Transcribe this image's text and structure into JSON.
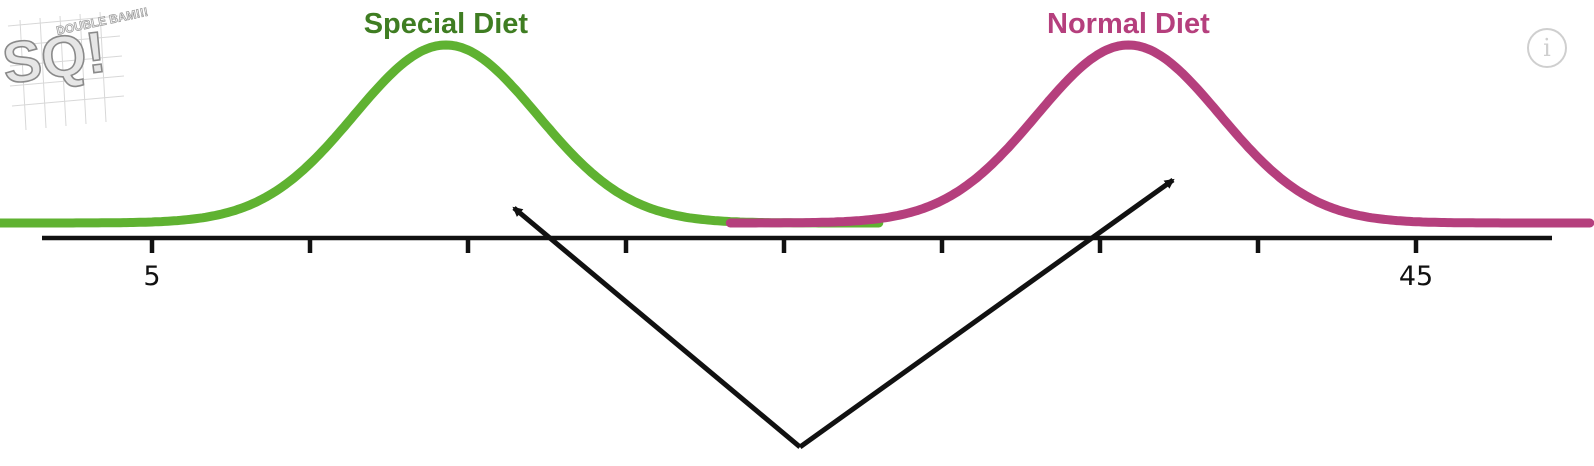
{
  "logo": {
    "main_text": "SQ!",
    "sub_text": "DOUBLE BAM!!!",
    "icon": "statquest-logo"
  },
  "info_button": {
    "glyph": "i",
    "icon": "info-icon"
  },
  "colors": {
    "special": "#5fb231",
    "special_label": "#3f7d22",
    "normal": "#b53f7d",
    "normal_label": "#b53f7d",
    "axis": "#111111",
    "arrow": "#111111"
  },
  "chart_data": {
    "type": "line",
    "x_ticks": [
      5,
      10,
      15,
      20,
      25,
      30,
      35,
      40,
      45
    ],
    "x_tick_labels": [
      "5",
      "",
      "",
      "",
      "",
      "",
      "",
      "",
      "45"
    ],
    "xlim": [
      1.5,
      48.5
    ],
    "series": [
      {
        "name": "Special Diet",
        "distribution": "normal",
        "mean": 14.3,
        "sd": 2.9,
        "color": "#5fb231",
        "label_color": "#3f7d22"
      },
      {
        "name": "Normal Diet",
        "distribution": "normal",
        "mean": 35.9,
        "sd": 2.9,
        "color": "#b53f7d",
        "label_color": "#b53f7d"
      }
    ],
    "annotations": [
      {
        "type": "arrow",
        "from": "x-axis",
        "to": "Special Diet"
      },
      {
        "type": "arrow",
        "from": "x-axis",
        "to": "Normal Diet"
      }
    ]
  }
}
